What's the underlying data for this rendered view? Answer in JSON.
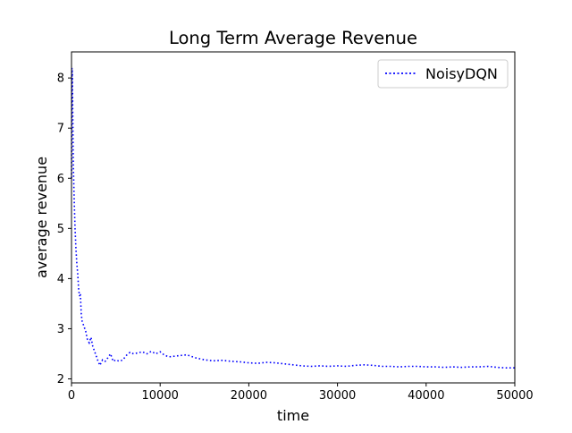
{
  "chart_data": {
    "type": "line",
    "title": "Long Term Average Revenue",
    "xlabel": "time",
    "ylabel": "average revenue",
    "xlim": [
      0,
      50000
    ],
    "ylim": [
      1.92,
      8.52
    ],
    "x_ticks": [
      0,
      10000,
      20000,
      30000,
      40000,
      50000
    ],
    "x_tick_labels": [
      "0",
      "10000",
      "20000",
      "30000",
      "40000",
      "50000"
    ],
    "y_ticks": [
      2,
      3,
      4,
      5,
      6,
      7,
      8
    ],
    "y_tick_labels": [
      "2",
      "3",
      "4",
      "5",
      "6",
      "7",
      "8"
    ],
    "grid": false,
    "legend": {
      "position": "upper right"
    },
    "series": [
      {
        "name": "NoisyDQN",
        "color": "#0000ff",
        "linestyle": "dotted",
        "points": [
          [
            0,
            6.0
          ],
          [
            50,
            8.2
          ],
          [
            100,
            8.1
          ],
          [
            150,
            7.2
          ],
          [
            200,
            6.3
          ],
          [
            300,
            5.6
          ],
          [
            400,
            5.0
          ],
          [
            500,
            4.6
          ],
          [
            600,
            4.3
          ],
          [
            700,
            4.1
          ],
          [
            800,
            3.8
          ],
          [
            900,
            3.65
          ],
          [
            1000,
            3.7
          ],
          [
            1100,
            3.3
          ],
          [
            1200,
            3.15
          ],
          [
            1400,
            3.05
          ],
          [
            1600,
            2.95
          ],
          [
            1800,
            2.78
          ],
          [
            2000,
            2.72
          ],
          [
            2200,
            2.83
          ],
          [
            2400,
            2.65
          ],
          [
            2600,
            2.55
          ],
          [
            2800,
            2.45
          ],
          [
            3000,
            2.35
          ],
          [
            3200,
            2.27
          ],
          [
            3500,
            2.38
          ],
          [
            3800,
            2.35
          ],
          [
            4100,
            2.42
          ],
          [
            4400,
            2.5
          ],
          [
            4700,
            2.35
          ],
          [
            5000,
            2.38
          ],
          [
            5400,
            2.35
          ],
          [
            5800,
            2.38
          ],
          [
            6200,
            2.47
          ],
          [
            6600,
            2.53
          ],
          [
            7000,
            2.5
          ],
          [
            7500,
            2.52
          ],
          [
            8000,
            2.54
          ],
          [
            8500,
            2.5
          ],
          [
            9000,
            2.55
          ],
          [
            9500,
            2.5
          ],
          [
            10000,
            2.54
          ],
          [
            10500,
            2.47
          ],
          [
            11000,
            2.44
          ],
          [
            12000,
            2.46
          ],
          [
            13000,
            2.48
          ],
          [
            14000,
            2.42
          ],
          [
            15000,
            2.38
          ],
          [
            16000,
            2.36
          ],
          [
            17000,
            2.37
          ],
          [
            18000,
            2.35
          ],
          [
            19000,
            2.34
          ],
          [
            20000,
            2.32
          ],
          [
            21000,
            2.31
          ],
          [
            22000,
            2.33
          ],
          [
            23000,
            2.32
          ],
          [
            24000,
            2.3
          ],
          [
            25000,
            2.28
          ],
          [
            26000,
            2.26
          ],
          [
            27000,
            2.25
          ],
          [
            28000,
            2.26
          ],
          [
            29000,
            2.25
          ],
          [
            30000,
            2.26
          ],
          [
            31000,
            2.25
          ],
          [
            32000,
            2.27
          ],
          [
            33000,
            2.28
          ],
          [
            34000,
            2.27
          ],
          [
            35000,
            2.25
          ],
          [
            36000,
            2.25
          ],
          [
            37000,
            2.24
          ],
          [
            38000,
            2.25
          ],
          [
            39000,
            2.25
          ],
          [
            40000,
            2.24
          ],
          [
            41000,
            2.24
          ],
          [
            42000,
            2.23
          ],
          [
            43000,
            2.24
          ],
          [
            44000,
            2.23
          ],
          [
            45000,
            2.24
          ],
          [
            46000,
            2.24
          ],
          [
            47000,
            2.25
          ],
          [
            48000,
            2.23
          ],
          [
            49000,
            2.22
          ],
          [
            50000,
            2.22
          ]
        ]
      }
    ]
  }
}
